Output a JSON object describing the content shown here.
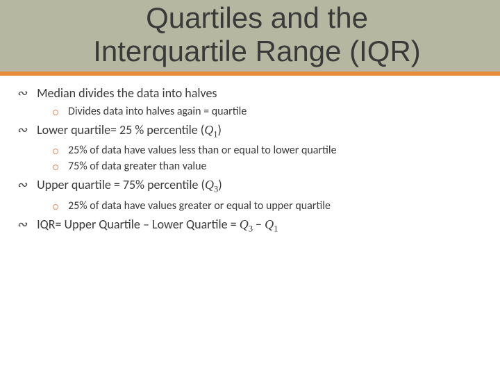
{
  "colors": {
    "header_bg": "#b5b7a0",
    "orange_line": "#e88c3c",
    "title_text": "#3a3a3a",
    "body_text": "#3a3a3a",
    "circle_border": "#d88c5c"
  },
  "typography": {
    "title_fontsize": 42,
    "level1_fontsize": 18,
    "level2_fontsize": 16
  },
  "title_line1": "Quartiles and the",
  "title_line2": "Interquartile Range (IQR)",
  "items": [
    {
      "text": "Median divides the data into halves",
      "subitems": [
        {
          "text": "Divides data into halves again = quartile"
        }
      ]
    },
    {
      "text_prefix": "Lower quartile= 25 % percentile  (",
      "math_var": "Q",
      "math_sub": "1",
      "text_suffix": ")",
      "subitems": [
        {
          "text": "25% of data have values less than or equal to lower quartile"
        },
        {
          "text": "75% of data greater than value"
        }
      ]
    },
    {
      "text_prefix": "Upper quartile = 75% percentile (",
      "math_var": "Q",
      "math_sub": "3",
      "text_suffix": ")",
      "subitems": [
        {
          "text": "25% of data have values greater or equal to upper quartile"
        }
      ]
    },
    {
      "iqr_prefix": "IQR= Upper Quartile – Lower Quartile = ",
      "iqr_q1var": "Q",
      "iqr_q1sub": "3",
      "iqr_minus": " − ",
      "iqr_q2var": "Q",
      "iqr_q2sub": "1"
    }
  ]
}
